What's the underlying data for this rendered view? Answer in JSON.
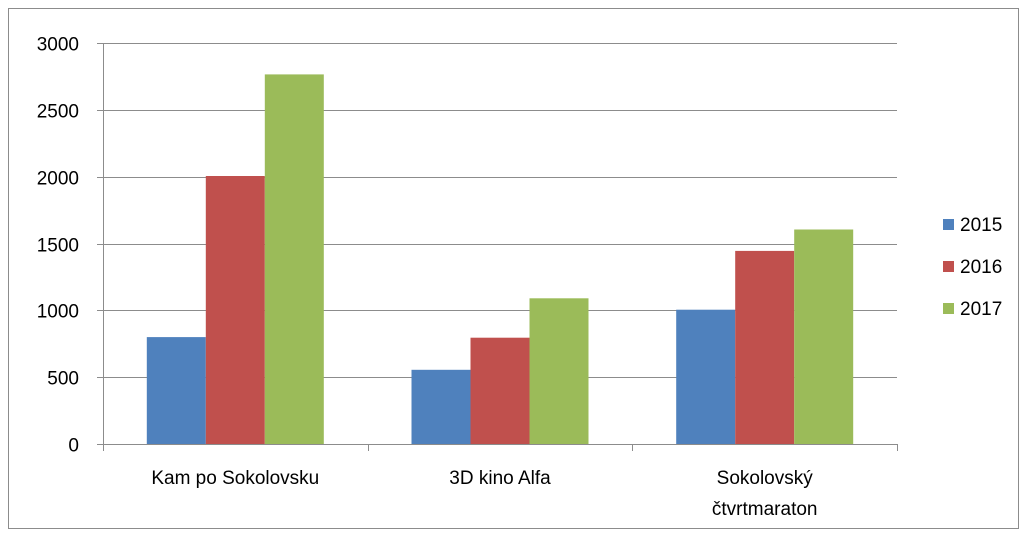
{
  "chart_data": {
    "type": "bar",
    "categories": [
      [
        "Kam po Sokolovsku"
      ],
      [
        "3D kino Alfa"
      ],
      [
        "Sokolovský",
        "čtvrtmaraton"
      ]
    ],
    "series": [
      {
        "name": "2015",
        "color": "#4f81bd",
        "values": [
          800,
          555,
          1005
        ]
      },
      {
        "name": "2016",
        "color": "#c0504d",
        "values": [
          2005,
          795,
          1445
        ]
      },
      {
        "name": "2017",
        "color": "#9bbb59",
        "values": [
          2765,
          1090,
          1605
        ]
      }
    ],
    "ylim": [
      0,
      3000
    ],
    "yticks": [
      0,
      500,
      1000,
      1500,
      2000,
      2500,
      3000
    ],
    "grid": true,
    "legend_position": "right"
  }
}
